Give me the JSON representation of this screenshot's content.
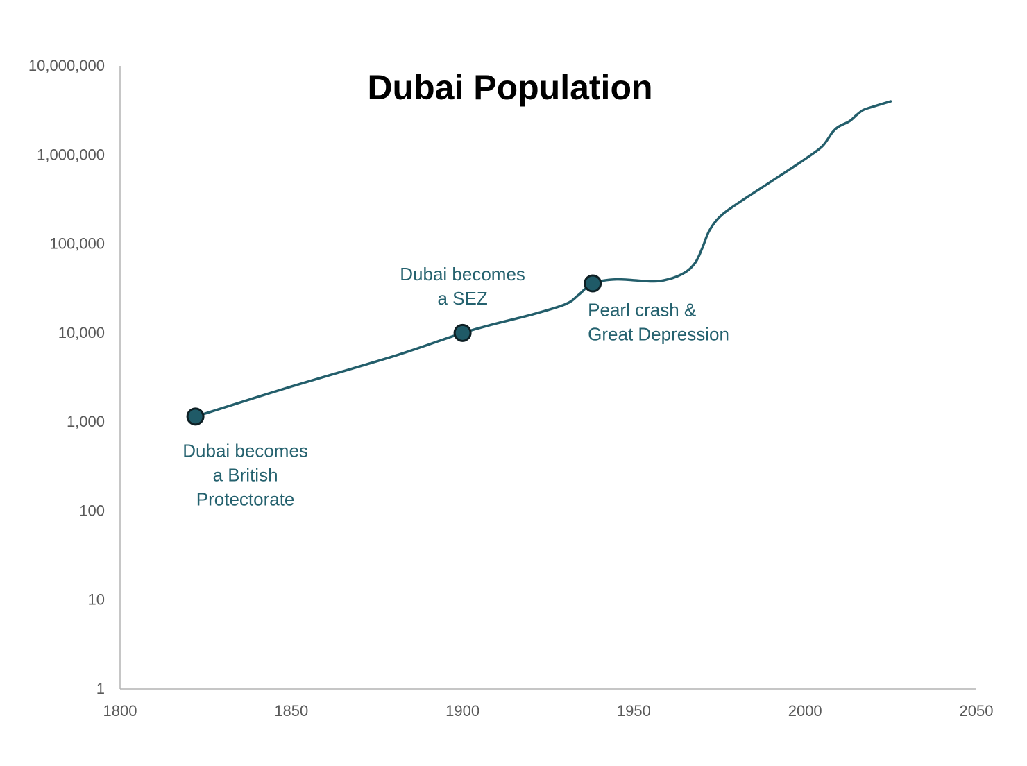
{
  "chart_data": {
    "type": "line",
    "title": "Dubai Population",
    "xlabel": "",
    "ylabel": "",
    "x_scale": "linear",
    "y_scale": "log10",
    "xlim": [
      1800,
      2050
    ],
    "ylim": [
      1,
      10000000
    ],
    "x_ticks": [
      1800,
      1850,
      1900,
      1950,
      2000,
      2050
    ],
    "x_tick_labels": [
      "1800",
      "1850",
      "1900",
      "1950",
      "2000",
      "2050"
    ],
    "y_ticks": [
      1,
      10,
      100,
      1000,
      10000,
      100000,
      1000000,
      10000000
    ],
    "y_tick_labels": [
      "1",
      "10",
      "100",
      "1,000",
      "10,000",
      "100,000",
      "1,000,000",
      "10,000,000"
    ],
    "grid": false,
    "legend": "none",
    "series": [
      {
        "name": "Dubai Population",
        "color": "#235e6b",
        "x": [
          1822,
          1850,
          1880,
          1900,
          1910,
          1920,
          1930,
          1934,
          1938,
          1945,
          1955,
          1960,
          1965,
          1968,
          1970,
          1972,
          1975,
          1980,
          1990,
          2000,
          2005,
          2008,
          2010,
          2013,
          2015,
          2017,
          2020,
          2025
        ],
        "values": [
          1150,
          2500,
          5500,
          10000,
          12800,
          16000,
          21000,
          27000,
          36000,
          40000,
          38000,
          40000,
          48000,
          62000,
          90000,
          140000,
          200000,
          280000,
          500000,
          900000,
          1250000,
          1800000,
          2100000,
          2400000,
          2800000,
          3200000,
          3500000,
          4000000
        ]
      }
    ],
    "markers": [
      {
        "x": 1822,
        "y": 1150,
        "label_lines": [
          "Dubai becomes",
          "a British",
          "Protectorate"
        ],
        "label_position": "below"
      },
      {
        "x": 1900,
        "y": 10000,
        "label_lines": [
          "Dubai becomes",
          "a SEZ"
        ],
        "label_position": "above"
      },
      {
        "x": 1938,
        "y": 36000,
        "label_lines": [
          "Pearl crash &",
          "Great Depression"
        ],
        "label_position": "below-right"
      }
    ],
    "colors": {
      "line": "#235e6b",
      "marker_fill": "#1f5a67",
      "marker_stroke": "#0e1f24",
      "annotation": "#24616e",
      "axis": "#b3b3b3",
      "tick_text": "#595959"
    }
  }
}
